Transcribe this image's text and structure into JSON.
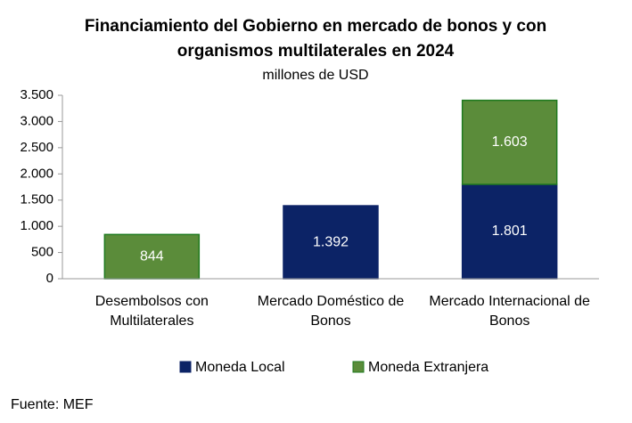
{
  "chart_data": {
    "type": "bar",
    "stacked": true,
    "title": [
      "Financiamiento del Gobierno en mercado de bonos y con",
      "organismos multilaterales en 2024"
    ],
    "subtitle": "millones de USD",
    "categories": [
      [
        "Desembolsos con",
        "Multilaterales"
      ],
      [
        "Mercado Doméstico de",
        "Bonos"
      ],
      [
        "Mercado Internacional de",
        "Bonos"
      ]
    ],
    "series": [
      {
        "name": "Moneda Local",
        "color": "#0c2366",
        "values": [
          null,
          1392,
          1801
        ],
        "value_labels": [
          null,
          "1.392",
          "1.801"
        ]
      },
      {
        "name": "Moneda Extranjera",
        "color": "#5b8c3a",
        "values": [
          844,
          null,
          1603
        ],
        "value_labels": [
          "844",
          null,
          "1.603"
        ]
      }
    ],
    "ylim": [
      0,
      3500
    ],
    "yticks": [
      0,
      500,
      {
        "value": 1000,
        "label": "1.000"
      },
      {
        "value": 1500,
        "label": "1.500"
      },
      {
        "value": 2000,
        "label": "2.000"
      },
      {
        "value": 2500,
        "label": "2.500"
      },
      {
        "value": 3000,
        "label": "3.000"
      },
      {
        "value": 3500,
        "label": "3.500"
      }
    ],
    "legend": "bottom",
    "source": "Fuente: MEF"
  }
}
